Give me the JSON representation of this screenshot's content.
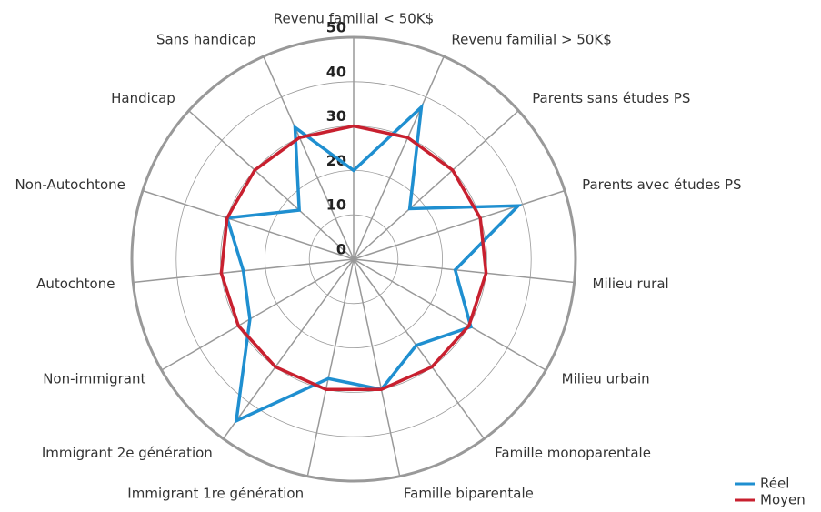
{
  "chart_data": {
    "type": "radar",
    "categories": [
      "Revenu familial < 50K$",
      "Revenu familial > 50K$",
      "Parents sans études PS",
      "Parents avec études PS",
      "Milieu rural",
      "Milieu urbain",
      "Famille monoparentale",
      "Famille biparentale",
      "Immigrant 1re génération",
      "Immigrant 2e génération",
      "Non-immigrant",
      "Autochtone",
      "Non-Autochtone",
      "Handicap",
      "Sans handicap"
    ],
    "series": [
      {
        "name": "Réel",
        "color": "#1f8fd0",
        "values": [
          20,
          37.5,
          17,
          39,
          23,
          30.5,
          24,
          30,
          27.5,
          45,
          27,
          25,
          30,
          16.5,
          32.5
        ]
      },
      {
        "name": "Moyen",
        "color": "#c8202f",
        "values": [
          30,
          30,
          30,
          30,
          30,
          30,
          30,
          30,
          30,
          30,
          30,
          30,
          30,
          30,
          30
        ]
      }
    ],
    "rlim": [
      0,
      50
    ],
    "rticks": [
      0,
      10,
      20,
      30,
      40,
      50
    ],
    "grid": true,
    "legend": "bottom-right"
  }
}
